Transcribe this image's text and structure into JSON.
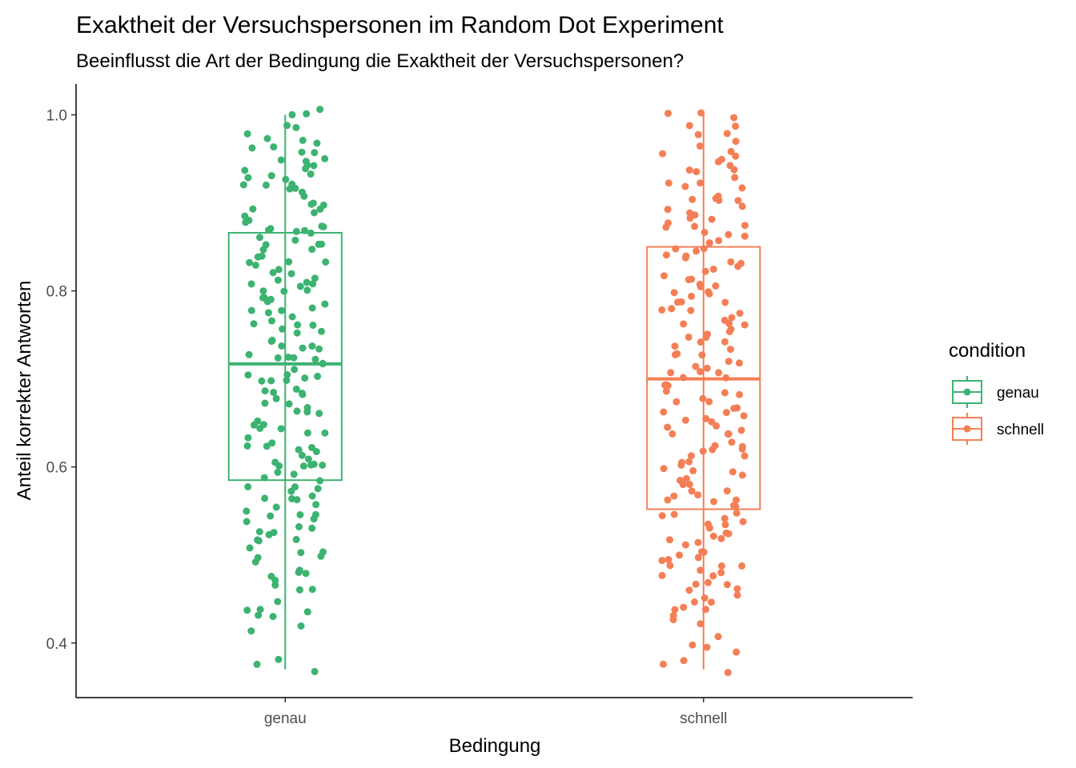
{
  "chart_data": {
    "type": "boxplot",
    "title": "Exaktheit der Versuchspersonen im Random Dot Experiment",
    "subtitle": "Beeinflusst die Art der Bedingung die Exaktheit der Versuchspersonen?",
    "xlabel": "Bedingung",
    "ylabel": "Anteil korrekter Antworten",
    "ylim": [
      0.338,
      1.035
    ],
    "yticks": [
      0.4,
      0.6,
      0.8,
      1.0
    ],
    "ytick_labels": [
      "0.4",
      "0.6",
      "0.8",
      "1.0"
    ],
    "categories": [
      "genau",
      "schnell"
    ],
    "grid": false,
    "legend": {
      "title": "condition",
      "position": "right",
      "entries": [
        "genau",
        "schnell"
      ]
    },
    "series": [
      {
        "name": "genau",
        "color": "#3cb371",
        "box": {
          "min": 0.37,
          "q1": 0.585,
          "median": 0.717,
          "q3": 0.866,
          "max": 1.0
        },
        "points": [
          1.0,
          1.005,
          1.0,
          0.99,
          0.98,
          0.97,
          0.97,
          0.965,
          0.96,
          0.955,
          0.95,
          0.945,
          0.94,
          0.935,
          0.93,
          0.93,
          0.925,
          0.92,
          0.92,
          0.915,
          0.91,
          0.9,
          0.9,
          0.895,
          0.89,
          0.885,
          0.88,
          0.875,
          0.87,
          0.868,
          0.865,
          0.86,
          0.855,
          0.85,
          0.845,
          0.84,
          0.835,
          0.83,
          0.83,
          0.825,
          0.82,
          0.815,
          0.81,
          0.81,
          0.805,
          0.8,
          0.8,
          0.795,
          0.79,
          0.785,
          0.78,
          0.775,
          0.77,
          0.765,
          0.76,
          0.755,
          0.75,
          0.745,
          0.74,
          0.735,
          0.735,
          0.73,
          0.725,
          0.72,
          0.715,
          0.71,
          0.705,
          0.7,
          0.7,
          0.695,
          0.69,
          0.685,
          0.68,
          0.675,
          0.67,
          0.665,
          0.66,
          0.655,
          0.65,
          0.645,
          0.64,
          0.635,
          0.63,
          0.625,
          0.62,
          0.615,
          0.61,
          0.605,
          0.6,
          0.6,
          0.595,
          0.59,
          0.585,
          0.58,
          0.575,
          0.57,
          0.565,
          0.56,
          0.555,
          0.55,
          0.545,
          0.54,
          0.535,
          0.53,
          0.525,
          0.52,
          0.515,
          0.51,
          0.505,
          0.5,
          0.49,
          0.48,
          0.47,
          0.465,
          0.46,
          0.45,
          0.44,
          0.43,
          0.43,
          0.42,
          0.415,
          0.38,
          0.375,
          0.368,
          0.97,
          0.96,
          0.95,
          0.94,
          0.92,
          0.9,
          0.88,
          0.87,
          0.86,
          0.84,
          0.82,
          0.8,
          0.78,
          0.76,
          0.74,
          0.72,
          0.7,
          0.68,
          0.66,
          0.64,
          0.62,
          0.6,
          0.58,
          0.56,
          0.54,
          0.52,
          0.5,
          0.48,
          0.46,
          0.44,
          0.985,
          0.915,
          0.905,
          0.875,
          0.855,
          0.835,
          0.815,
          0.795,
          0.775,
          0.755,
          0.745,
          0.725,
          0.705,
          0.685,
          0.665,
          0.645,
          0.625,
          0.605,
          0.585,
          0.565,
          0.545,
          0.525,
          0.505,
          0.485,
          0.435,
          0.935,
          0.895,
          0.845,
          0.805,
          0.765,
          0.725,
          0.685,
          0.645,
          0.605,
          0.565,
          0.525,
          0.475,
          0.945,
          0.865,
          0.785,
          0.705,
          0.625,
          0.545
        ]
      },
      {
        "name": "schnell",
        "color": "#f47f56",
        "box": {
          "min": 0.37,
          "q1": 0.552,
          "median": 0.7,
          "q3": 0.85,
          "max": 1.0
        },
        "points": [
          1.0,
          1.0,
          0.995,
          0.99,
          0.985,
          0.98,
          0.97,
          0.965,
          0.955,
          0.95,
          0.945,
          0.94,
          0.935,
          0.93,
          0.92,
          0.915,
          0.91,
          0.905,
          0.9,
          0.895,
          0.89,
          0.885,
          0.88,
          0.875,
          0.87,
          0.865,
          0.86,
          0.855,
          0.85,
          0.845,
          0.84,
          0.835,
          0.83,
          0.825,
          0.82,
          0.815,
          0.81,
          0.805,
          0.8,
          0.795,
          0.79,
          0.785,
          0.78,
          0.775,
          0.77,
          0.765,
          0.76,
          0.755,
          0.75,
          0.745,
          0.74,
          0.735,
          0.73,
          0.725,
          0.72,
          0.715,
          0.71,
          0.705,
          0.7,
          0.695,
          0.69,
          0.685,
          0.68,
          0.675,
          0.67,
          0.665,
          0.66,
          0.655,
          0.65,
          0.645,
          0.64,
          0.635,
          0.63,
          0.625,
          0.62,
          0.615,
          0.61,
          0.605,
          0.6,
          0.595,
          0.59,
          0.585,
          0.58,
          0.575,
          0.57,
          0.565,
          0.56,
          0.555,
          0.55,
          0.545,
          0.54,
          0.535,
          0.53,
          0.525,
          0.52,
          0.515,
          0.51,
          0.505,
          0.5,
          0.495,
          0.49,
          0.485,
          0.48,
          0.475,
          0.47,
          0.465,
          0.46,
          0.455,
          0.45,
          0.445,
          0.44,
          0.435,
          0.43,
          0.42,
          0.41,
          0.4,
          0.395,
          0.39,
          0.38,
          0.375,
          0.368,
          0.96,
          0.94,
          0.92,
          0.9,
          0.88,
          0.86,
          0.84,
          0.82,
          0.8,
          0.78,
          0.76,
          0.74,
          0.72,
          0.7,
          0.68,
          0.66,
          0.64,
          0.62,
          0.6,
          0.58,
          0.56,
          0.54,
          0.52,
          0.5,
          0.48,
          0.46,
          0.44,
          0.975,
          0.925,
          0.875,
          0.825,
          0.775,
          0.725,
          0.675,
          0.625,
          0.575,
          0.525,
          0.475,
          0.425,
          0.955,
          0.895,
          0.845,
          0.795,
          0.745,
          0.695,
          0.645,
          0.595,
          0.545,
          0.495,
          0.445,
          0.935,
          0.865,
          0.815,
          0.765,
          0.715,
          0.665,
          0.615,
          0.565,
          0.515,
          0.465,
          0.885,
          0.835,
          0.785,
          0.735,
          0.685,
          0.635,
          0.585,
          0.535,
          0.485,
          0.905,
          0.855,
          0.805,
          0.755,
          0.705,
          0.655,
          0.605,
          0.555,
          0.505
        ]
      }
    ]
  }
}
